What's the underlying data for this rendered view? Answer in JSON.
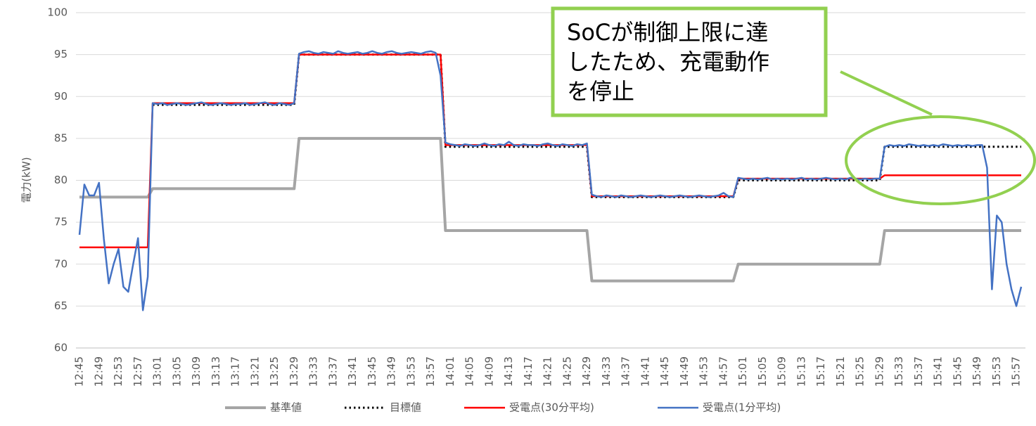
{
  "chart_data": {
    "type": "line",
    "ylabel": "電力(kW)",
    "annotation": [
      "SoCが制御上限に達",
      "したため、充電動作",
      "を停止"
    ],
    "ylim": [
      60,
      100
    ],
    "yticks": [
      60,
      65,
      70,
      75,
      80,
      85,
      90,
      95,
      100
    ],
    "grid": true,
    "legend": "bottom",
    "categories": [
      "12:45",
      null,
      null,
      null,
      "12:49",
      null,
      null,
      null,
      "12:53",
      null,
      null,
      null,
      "12:57",
      null,
      null,
      null,
      "13:01",
      null,
      null,
      null,
      "13:05",
      null,
      null,
      null,
      "13:09",
      null,
      null,
      null,
      "13:13",
      null,
      null,
      null,
      "13:17",
      null,
      null,
      null,
      "13:21",
      null,
      null,
      null,
      "13:25",
      null,
      null,
      null,
      "13:29",
      null,
      null,
      null,
      "13:33",
      null,
      null,
      null,
      "13:37",
      null,
      null,
      null,
      "13:41",
      null,
      null,
      null,
      "13:45",
      null,
      null,
      null,
      "13:49",
      null,
      null,
      null,
      "13:53",
      null,
      null,
      null,
      "13:57",
      null,
      null,
      null,
      "14:01",
      null,
      null,
      null,
      "14:05",
      null,
      null,
      null,
      "14:09",
      null,
      null,
      null,
      "14:13",
      null,
      null,
      null,
      "14:17",
      null,
      null,
      null,
      "14:21",
      null,
      null,
      null,
      "14:25",
      null,
      null,
      null,
      "14:29",
      null,
      null,
      null,
      "14:33",
      null,
      null,
      null,
      "14:37",
      null,
      null,
      null,
      "14:41",
      null,
      null,
      null,
      "14:45",
      null,
      null,
      null,
      "14:49",
      null,
      null,
      null,
      "14:53",
      null,
      null,
      null,
      "14:57",
      null,
      null,
      null,
      "15:01",
      null,
      null,
      null,
      "15:05",
      null,
      null,
      null,
      "15:09",
      null,
      null,
      null,
      "15:13",
      null,
      null,
      null,
      "15:17",
      null,
      null,
      null,
      "15:21",
      null,
      null,
      null,
      "15:25",
      null,
      null,
      null,
      "15:29",
      null,
      null,
      null,
      "15:33",
      null,
      null,
      null,
      "15:37",
      null,
      null,
      null,
      "15:41",
      null,
      null,
      null,
      "15:45",
      null,
      null,
      null,
      "15:49",
      null,
      null,
      null,
      "15:53",
      null,
      null,
      null,
      "15:57",
      null
    ],
    "series": [
      {
        "name": "基準値",
        "color": "#a5a5a5",
        "line_style": "solid",
        "values": [
          78,
          78,
          78,
          78,
          78,
          78,
          78,
          78,
          78,
          78,
          78,
          78,
          78,
          78,
          78,
          79,
          79,
          79,
          79,
          79,
          79,
          79,
          79,
          79,
          79,
          79,
          79,
          79,
          79,
          79,
          79,
          79,
          79,
          79,
          79,
          79,
          79,
          79,
          79,
          79,
          79,
          79,
          79,
          79,
          79,
          85,
          85,
          85,
          85,
          85,
          85,
          85,
          85,
          85,
          85,
          85,
          85,
          85,
          85,
          85,
          85,
          85,
          85,
          85,
          85,
          85,
          85,
          85,
          85,
          85,
          85,
          85,
          85,
          85,
          85,
          74,
          74,
          74,
          74,
          74,
          74,
          74,
          74,
          74,
          74,
          74,
          74,
          74,
          74,
          74,
          74,
          74,
          74,
          74,
          74,
          74,
          74,
          74,
          74,
          74,
          74,
          74,
          74,
          74,
          74,
          68,
          68,
          68,
          68,
          68,
          68,
          68,
          68,
          68,
          68,
          68,
          68,
          68,
          68,
          68,
          68,
          68,
          68,
          68,
          68,
          68,
          68,
          68,
          68,
          68,
          68,
          68,
          68,
          68,
          68,
          70,
          70,
          70,
          70,
          70,
          70,
          70,
          70,
          70,
          70,
          70,
          70,
          70,
          70,
          70,
          70,
          70,
          70,
          70,
          70,
          70,
          70,
          70,
          70,
          70,
          70,
          70,
          70,
          70,
          70,
          74,
          74,
          74,
          74,
          74,
          74,
          74,
          74,
          74,
          74,
          74,
          74,
          74,
          74,
          74,
          74,
          74,
          74,
          74,
          74,
          74,
          74,
          74,
          74,
          74,
          74,
          74,
          74,
          74
        ]
      },
      {
        "name": "目標値",
        "color": "#000000",
        "line_style": "dotted",
        "values": [
          null,
          null,
          null,
          null,
          null,
          null,
          null,
          null,
          null,
          null,
          null,
          null,
          null,
          null,
          null,
          89,
          89,
          89,
          89,
          89,
          89,
          89,
          89,
          89,
          89,
          89,
          89,
          89,
          89,
          89,
          89,
          89,
          89,
          89,
          89,
          89,
          89,
          89,
          89,
          89,
          89,
          89,
          89,
          89,
          89,
          95,
          95,
          95,
          95,
          95,
          95,
          95,
          95,
          95,
          95,
          95,
          95,
          95,
          95,
          95,
          95,
          95,
          95,
          95,
          95,
          95,
          95,
          95,
          95,
          95,
          95,
          95,
          95,
          95,
          95,
          84,
          84,
          84,
          84,
          84,
          84,
          84,
          84,
          84,
          84,
          84,
          84,
          84,
          84,
          84,
          84,
          84,
          84,
          84,
          84,
          84,
          84,
          84,
          84,
          84,
          84,
          84,
          84,
          84,
          84,
          78,
          78,
          78,
          78,
          78,
          78,
          78,
          78,
          78,
          78,
          78,
          78,
          78,
          78,
          78,
          78,
          78,
          78,
          78,
          78,
          78,
          78,
          78,
          78,
          78,
          78,
          78,
          78,
          78,
          78,
          80,
          80,
          80,
          80,
          80,
          80,
          80,
          80,
          80,
          80,
          80,
          80,
          80,
          80,
          80,
          80,
          80,
          80,
          80,
          80,
          80,
          80,
          80,
          80,
          80,
          80,
          80,
          80,
          80,
          80,
          84,
          84,
          84,
          84,
          84,
          84,
          84,
          84,
          84,
          84,
          84,
          84,
          84,
          84,
          84,
          84,
          84,
          84,
          84,
          84,
          84,
          84,
          84,
          84,
          84,
          84,
          84,
          84,
          84
        ]
      },
      {
        "name": "受電点(30分平均)",
        "color": "#ff0000",
        "line_style": "solid",
        "values": [
          72,
          72,
          72,
          72,
          72,
          72,
          72,
          72,
          72,
          72,
          72,
          72,
          72,
          72,
          72,
          89.2,
          89.2,
          89.2,
          89.2,
          89.2,
          89.2,
          89.2,
          89.2,
          89.2,
          89.2,
          89.2,
          89.2,
          89.2,
          89.2,
          89.2,
          89.2,
          89.2,
          89.2,
          89.2,
          89.2,
          89.2,
          89.2,
          89.2,
          89.2,
          89.2,
          89.2,
          89.2,
          89.2,
          89.2,
          89.2,
          95,
          95,
          95,
          95,
          95,
          95,
          95,
          95,
          95,
          95,
          95,
          95,
          95,
          95,
          95,
          95,
          95,
          95,
          95,
          95,
          95,
          95,
          95,
          95,
          95,
          95,
          95,
          95,
          95,
          95,
          84.2,
          84.2,
          84.2,
          84.2,
          84.2,
          84.2,
          84.2,
          84.2,
          84.2,
          84.2,
          84.2,
          84.2,
          84.2,
          84.2,
          84.2,
          84.2,
          84.2,
          84.2,
          84.2,
          84.2,
          84.2,
          84.2,
          84.2,
          84.2,
          84.2,
          84.2,
          84.2,
          84.2,
          84.2,
          84.2,
          78.1,
          78.1,
          78.1,
          78.1,
          78.1,
          78.1,
          78.1,
          78.1,
          78.1,
          78.1,
          78.1,
          78.1,
          78.1,
          78.1,
          78.1,
          78.1,
          78.1,
          78.1,
          78.1,
          78.1,
          78.1,
          78.1,
          78.1,
          78.1,
          78.1,
          78.1,
          78.1,
          78.1,
          78.1,
          78.1,
          80.2,
          80.2,
          80.2,
          80.2,
          80.2,
          80.2,
          80.2,
          80.2,
          80.2,
          80.2,
          80.2,
          80.2,
          80.2,
          80.2,
          80.2,
          80.2,
          80.2,
          80.2,
          80.2,
          80.2,
          80.2,
          80.2,
          80.2,
          80.2,
          80.2,
          80.2,
          80.2,
          80.2,
          80.2,
          80.2,
          80.6,
          80.6,
          80.6,
          80.6,
          80.6,
          80.6,
          80.6,
          80.6,
          80.6,
          80.6,
          80.6,
          80.6,
          80.6,
          80.6,
          80.6,
          80.6,
          80.6,
          80.6,
          80.6,
          80.6,
          80.6,
          80.6,
          80.6,
          80.6,
          80.6,
          80.6,
          80.6,
          80.6,
          80.6
        ]
      },
      {
        "name": "受電点(1分平均)",
        "color": "#4472c4",
        "line_style": "solid",
        "values": [
          73.5,
          79.5,
          78.2,
          78.2,
          79.7,
          73,
          67.7,
          70,
          71.8,
          67.3,
          66.7,
          70,
          73.1,
          64.5,
          68.5,
          89.2,
          89.1,
          89.2,
          89.0,
          89.1,
          89.2,
          89.1,
          89.0,
          89.1,
          89.2,
          89.3,
          89.1,
          89.0,
          89.1,
          89.2,
          89.1,
          89.0,
          89.1,
          89.1,
          89.2,
          89.0,
          89.1,
          89.2,
          89.3,
          89.1,
          89.0,
          89.2,
          89.1,
          89.0,
          89.2,
          95.1,
          95.3,
          95.4,
          95.2,
          95.1,
          95.3,
          95.2,
          95.1,
          95.4,
          95.2,
          95.1,
          95.2,
          95.3,
          95.1,
          95.2,
          95.4,
          95.2,
          95.1,
          95.3,
          95.4,
          95.2,
          95.1,
          95.2,
          95.3,
          95.2,
          95.1,
          95.3,
          95.4,
          95.2,
          92.5,
          84.5,
          84.3,
          84.2,
          84.1,
          84.3,
          84.2,
          84.1,
          84.2,
          84.4,
          84.2,
          84.1,
          84.3,
          84.2,
          84.6,
          84.2,
          84.1,
          84.3,
          84.2,
          84.2,
          84.1,
          84.3,
          84.4,
          84.2,
          84.1,
          84.3,
          84.2,
          84.1,
          84.3,
          84.2,
          84.4,
          78.3,
          78.1,
          78.0,
          78.2,
          78.1,
          78.0,
          78.2,
          78.1,
          78.0,
          78.1,
          78.2,
          78.1,
          78.0,
          78.1,
          78.2,
          78.1,
          78.0,
          78.1,
          78.2,
          78.1,
          78.0,
          78.1,
          78.2,
          78.1,
          78.0,
          78.1,
          78.2,
          78.5,
          78.1,
          78.0,
          80.3,
          80.2,
          80.1,
          80.2,
          80.1,
          80.2,
          80.3,
          80.1,
          80.2,
          80.1,
          80.2,
          80.1,
          80.2,
          80.3,
          80.1,
          80.2,
          80.1,
          80.2,
          80.3,
          80.2,
          80.1,
          80.2,
          80.1,
          80.3,
          80.2,
          80.1,
          80.2,
          80.1,
          80.2,
          80.2,
          84.0,
          84.2,
          84.1,
          84.2,
          84.1,
          84.3,
          84.2,
          84.1,
          84.2,
          84.1,
          84.2,
          84.1,
          84.3,
          84.2,
          84.1,
          84.2,
          84.1,
          84.2,
          84.1,
          84.2,
          84.2,
          81.5,
          67.0,
          75.8,
          75.0,
          70.0,
          67.0,
          65.0,
          67.3
        ]
      }
    ]
  }
}
